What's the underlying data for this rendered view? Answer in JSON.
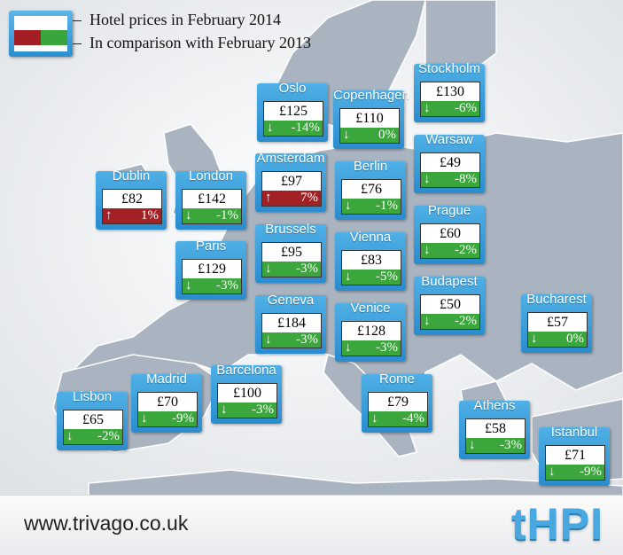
{
  "legend": {
    "line1": "Hotel prices in February 2014",
    "line2": "In comparison with February 2013",
    "colors": {
      "increase": "#a32024",
      "decrease": "#3ba63b"
    }
  },
  "footer": {
    "url": "www.trivago.co.uk",
    "brand": "tHPI"
  },
  "cities": [
    {
      "id": "stockholm",
      "name": "Stockholm",
      "price": "£130",
      "change": "-6%",
      "direction": "down"
    },
    {
      "id": "oslo",
      "name": "Oslo",
      "price": "£125",
      "change": "-14%",
      "direction": "down"
    },
    {
      "id": "copenhagen",
      "name": "Copenhagen",
      "price": "£110",
      "change": "0%",
      "direction": "down"
    },
    {
      "id": "warsaw",
      "name": "Warsaw",
      "price": "£49",
      "change": "-8%",
      "direction": "down"
    },
    {
      "id": "dublin",
      "name": "Dublin",
      "price": "£82",
      "change": "1%",
      "direction": "up"
    },
    {
      "id": "london",
      "name": "London",
      "price": "£142",
      "change": "-1%",
      "direction": "down"
    },
    {
      "id": "amsterdam",
      "name": "Amsterdam",
      "price": "£97",
      "change": "7%",
      "direction": "up"
    },
    {
      "id": "berlin",
      "name": "Berlin",
      "price": "£76",
      "change": "-1%",
      "direction": "down"
    },
    {
      "id": "prague",
      "name": "Prague",
      "price": "£60",
      "change": "-2%",
      "direction": "down"
    },
    {
      "id": "paris",
      "name": "Paris",
      "price": "£129",
      "change": "-3%",
      "direction": "down"
    },
    {
      "id": "brussels",
      "name": "Brussels",
      "price": "£95",
      "change": "-3%",
      "direction": "down"
    },
    {
      "id": "vienna",
      "name": "Vienna",
      "price": "£83",
      "change": "-5%",
      "direction": "down"
    },
    {
      "id": "budapest",
      "name": "Budapest",
      "price": "£50",
      "change": "-2%",
      "direction": "down"
    },
    {
      "id": "geneva",
      "name": "Geneva",
      "price": "£184",
      "change": "-3%",
      "direction": "down"
    },
    {
      "id": "venice",
      "name": "Venice",
      "price": "£128",
      "change": "-3%",
      "direction": "down"
    },
    {
      "id": "bucharest",
      "name": "Bucharest",
      "price": "£57",
      "change": "0%",
      "direction": "down"
    },
    {
      "id": "madrid",
      "name": "Madrid",
      "price": "£70",
      "change": "-9%",
      "direction": "down"
    },
    {
      "id": "barcelona",
      "name": "Barcelona",
      "price": "£100",
      "change": "-3%",
      "direction": "down"
    },
    {
      "id": "rome",
      "name": "Rome",
      "price": "£79",
      "change": "-4%",
      "direction": "down"
    },
    {
      "id": "lisbon",
      "name": "Lisbon",
      "price": "£65",
      "change": "-2%",
      "direction": "down"
    },
    {
      "id": "athens",
      "name": "Athens",
      "price": "£58",
      "change": "-3%",
      "direction": "down"
    },
    {
      "id": "istanbul",
      "name": "Istanbul",
      "price": "£71",
      "change": "-9%",
      "direction": "down"
    }
  ]
}
